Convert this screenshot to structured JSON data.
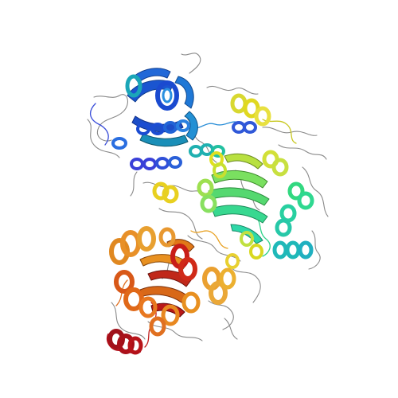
{
  "image": {
    "subject": "protein-structure-ribbon",
    "rainbow_palette": [
      "#1a1fd8",
      "#1f6fd6",
      "#1fb5c8",
      "#27d0a0",
      "#35e06a",
      "#c8e83a",
      "#f2d21e",
      "#f2a21e",
      "#e8760e",
      "#d9300c",
      "#b0101a"
    ],
    "background_color": "#ffffff",
    "coil_color": "#8a8a8a"
  }
}
